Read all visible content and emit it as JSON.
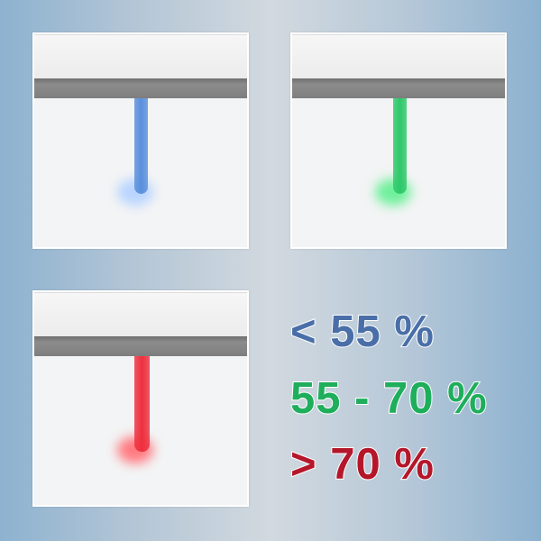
{
  "panels": [
    {
      "name": "blue",
      "color": "#5a8fdc",
      "glow": "#b8d4ff"
    },
    {
      "name": "green",
      "color": "#2ec86a",
      "glow": "#6ef09a"
    },
    {
      "name": "red",
      "color": "#ee2f3e",
      "glow": "#ff7a80"
    }
  ],
  "legend": [
    {
      "text": "< 55 %",
      "color": "#4a6fa8"
    },
    {
      "text": "55 - 70 %",
      "color": "#1fae5c"
    },
    {
      "text": "> 70 %",
      "color": "#b5172a"
    }
  ]
}
